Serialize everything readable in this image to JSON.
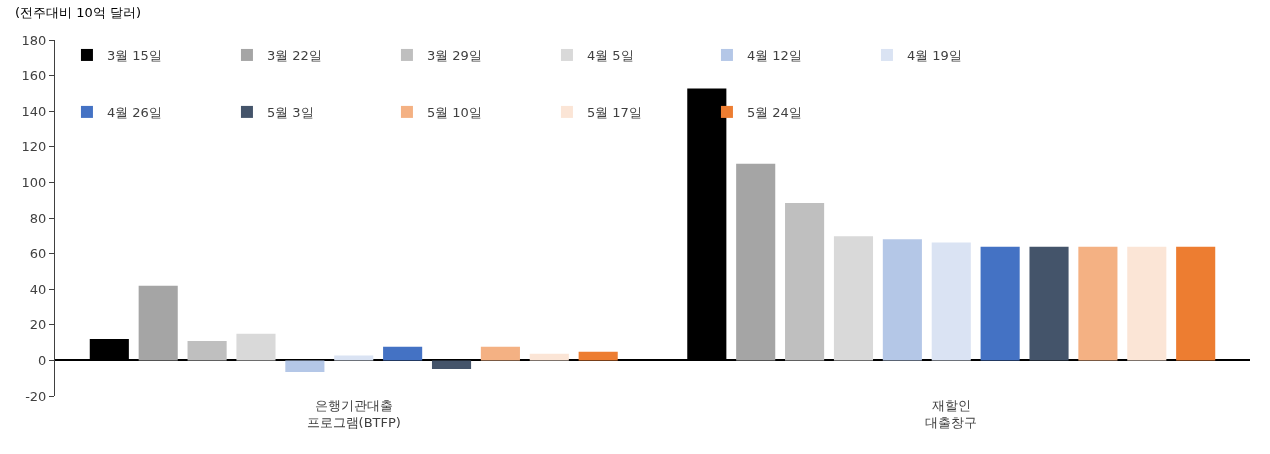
{
  "chart_data": {
    "type": "bar",
    "ylabel": "(전주대비 10억 달러)",
    "categories": [
      "은행기관대출\n프로그램(BTFP)",
      "재할인\n대출창구"
    ],
    "series": [
      {
        "name": "3월 15일",
        "color": "#000000",
        "values": [
          12,
          152.7
        ]
      },
      {
        "name": "3월 22일",
        "color": "#a5a5a5",
        "values": [
          42,
          110.5
        ]
      },
      {
        "name": "3월 29일",
        "color": "#bfbfbf",
        "values": [
          10.9,
          88.4
        ]
      },
      {
        "name": "4월 5일",
        "color": "#d9d9d9",
        "values": [
          15,
          69.8
        ]
      },
      {
        "name": "4월 12일",
        "color": "#b4c7e7",
        "values": [
          -6.5,
          68
        ]
      },
      {
        "name": "4월 19일",
        "color": "#dae3f3",
        "values": [
          2.7,
          66.3
        ]
      },
      {
        "name": "4월 26일",
        "color": "#4472c4",
        "values": [
          7.6,
          63.8
        ]
      },
      {
        "name": "5월 3일",
        "color": "#44546a",
        "values": [
          -4.9,
          63.8
        ]
      },
      {
        "name": "5월 10일",
        "color": "#f4b183",
        "values": [
          7.6,
          63.8
        ]
      },
      {
        "name": "5월 17일",
        "color": "#fbe5d6",
        "values": [
          3.8,
          63.8
        ]
      },
      {
        "name": "5월 24일",
        "color": "#ed7d31",
        "values": [
          4.9,
          63.8
        ]
      }
    ],
    "ylim": [
      -20,
      180
    ],
    "yticks": [
      -20,
      0,
      20,
      40,
      60,
      80,
      100,
      120,
      140,
      160,
      180
    ],
    "legend": "top left"
  }
}
